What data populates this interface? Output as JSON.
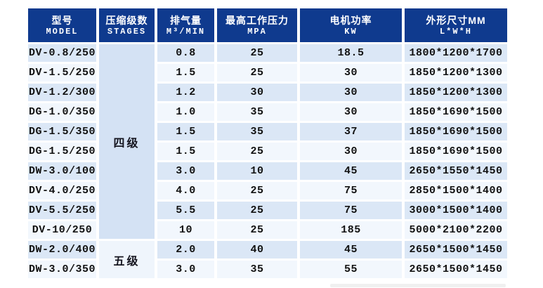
{
  "table": {
    "columns": [
      {
        "zh": "型号",
        "en": "MODEL"
      },
      {
        "zh": "压缩级数",
        "en": "STAGES"
      },
      {
        "zh": "排气量",
        "en": "M³/MIN"
      },
      {
        "zh": "最高工作压力",
        "en": "MPA"
      },
      {
        "zh": "电机功率",
        "en": "KW"
      },
      {
        "zh": "外形尺寸MM",
        "en": "L*W*H"
      }
    ],
    "stage_groups": [
      {
        "label": "四级",
        "row_span": 10
      },
      {
        "label": "五级",
        "row_span": 2
      }
    ],
    "rows": [
      {
        "model": "DV-0.8/250",
        "displacement": "0.8",
        "pressure": "25",
        "power": "18.5",
        "dimensions": "1800*1200*1700"
      },
      {
        "model": "DV-1.5/250",
        "displacement": "1.5",
        "pressure": "25",
        "power": "30",
        "dimensions": "1850*1200*1300"
      },
      {
        "model": "DV-1.2/300",
        "displacement": "1.2",
        "pressure": "30",
        "power": "30",
        "dimensions": "1850*1200*1300"
      },
      {
        "model": "DG-1.0/350",
        "displacement": "1.0",
        "pressure": "35",
        "power": "30",
        "dimensions": "1850*1690*1500"
      },
      {
        "model": "DG-1.5/350",
        "displacement": "1.5",
        "pressure": "35",
        "power": "37",
        "dimensions": "1850*1690*1500"
      },
      {
        "model": "DG-1.5/250",
        "displacement": "1.5",
        "pressure": "25",
        "power": "30",
        "dimensions": "1850*1690*1500"
      },
      {
        "model": "DW-3.0/100",
        "displacement": "3.0",
        "pressure": "10",
        "power": "45",
        "dimensions": "2650*1550*1450"
      },
      {
        "model": "DV-4.0/250",
        "displacement": "4.0",
        "pressure": "25",
        "power": "75",
        "dimensions": "2850*1500*1400"
      },
      {
        "model": "DV-5.5/250",
        "displacement": "5.5",
        "pressure": "25",
        "power": "75",
        "dimensions": "3000*1500*1400"
      },
      {
        "model": "DV-10/250",
        "displacement": "10",
        "pressure": "25",
        "power": "185",
        "dimensions": "5000*2100*2200"
      },
      {
        "model": "DW-2.0/400",
        "displacement": "2.0",
        "pressure": "40",
        "power": "45",
        "dimensions": "2650*1500*1450"
      },
      {
        "model": "DW-3.0/350",
        "displacement": "3.0",
        "pressure": "35",
        "power": "55",
        "dimensions": "2650*1500*1450"
      }
    ],
    "colors": {
      "header_bg": "#0f3a8e",
      "header_text": "#ffffff",
      "row_stripe_dark": "#dbe7f6",
      "row_stripe_light": "#f2f7fd",
      "stage4_bg": "#d4e2f4",
      "stage5_bg": "#eff5fc",
      "cell_text": "#121212"
    }
  },
  "chart_data": {
    "type": "table",
    "title": "",
    "columns": [
      "型号 MODEL",
      "压缩级数 STAGES",
      "排气量 M³/MIN",
      "最高工作压力 MPA",
      "电机功率 KW",
      "外形尺寸MM L*W*H"
    ],
    "rows": [
      [
        "DV-0.8/250",
        "四级",
        0.8,
        25,
        18.5,
        "1800*1200*1700"
      ],
      [
        "DV-1.5/250",
        "四级",
        1.5,
        25,
        30,
        "1850*1200*1300"
      ],
      [
        "DV-1.2/300",
        "四级",
        1.2,
        30,
        30,
        "1850*1200*1300"
      ],
      [
        "DG-1.0/350",
        "四级",
        1.0,
        35,
        30,
        "1850*1690*1500"
      ],
      [
        "DG-1.5/350",
        "四级",
        1.5,
        35,
        37,
        "1850*1690*1500"
      ],
      [
        "DG-1.5/250",
        "四级",
        1.5,
        25,
        30,
        "1850*1690*1500"
      ],
      [
        "DW-3.0/100",
        "四级",
        3.0,
        10,
        45,
        "2650*1550*1450"
      ],
      [
        "DV-4.0/250",
        "四级",
        4.0,
        25,
        75,
        "2850*1500*1400"
      ],
      [
        "DV-5.5/250",
        "四级",
        5.5,
        25,
        75,
        "3000*1500*1400"
      ],
      [
        "DV-10/250",
        "四级",
        10,
        25,
        185,
        "5000*2100*2200"
      ],
      [
        "DW-2.0/400",
        "五级",
        2.0,
        40,
        45,
        "2650*1500*1450"
      ],
      [
        "DW-3.0/350",
        "五级",
        3.0,
        35,
        55,
        "2650*1500*1450"
      ]
    ]
  }
}
